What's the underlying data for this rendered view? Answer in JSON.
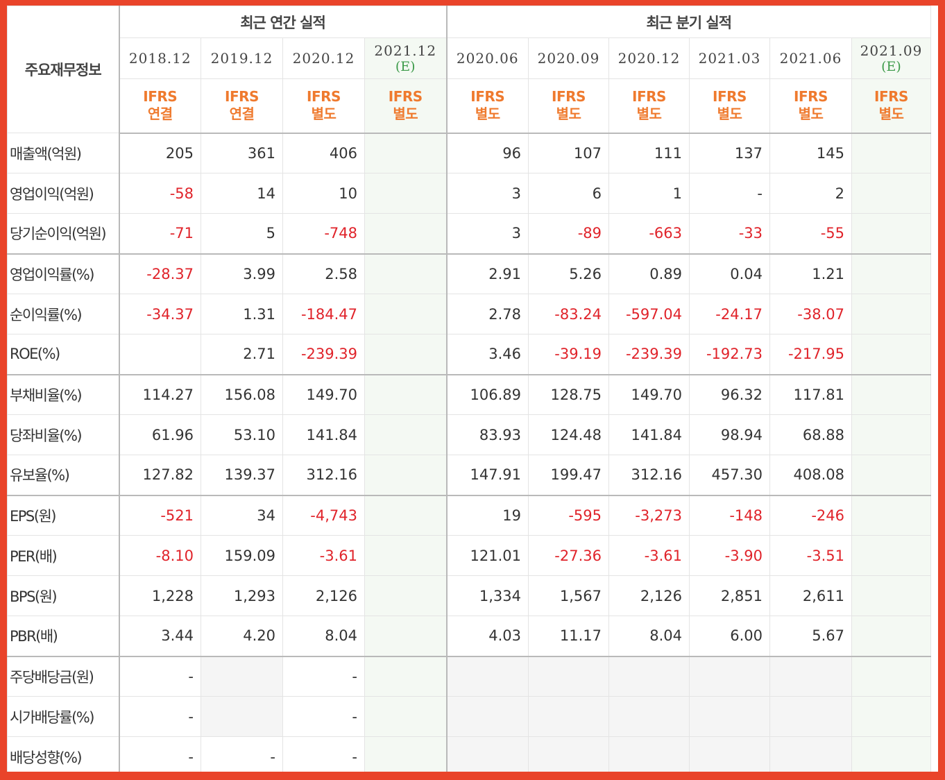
{
  "header": {
    "label_title": "주요재무정보",
    "annual_group": "최근 연간 실적",
    "quarter_group": "최근 분기 실적"
  },
  "periods": [
    {
      "date": "2018.12",
      "est": "",
      "ifrs1": "IFRS",
      "ifrs2": "연결"
    },
    {
      "date": "2019.12",
      "est": "",
      "ifrs1": "IFRS",
      "ifrs2": "연결"
    },
    {
      "date": "2020.12",
      "est": "",
      "ifrs1": "IFRS",
      "ifrs2": "별도"
    },
    {
      "date": "2021.12",
      "est": "(E)",
      "ifrs1": "IFRS",
      "ifrs2": "별도"
    },
    {
      "date": "2020.06",
      "est": "",
      "ifrs1": "IFRS",
      "ifrs2": "별도"
    },
    {
      "date": "2020.09",
      "est": "",
      "ifrs1": "IFRS",
      "ifrs2": "별도"
    },
    {
      "date": "2020.12",
      "est": "",
      "ifrs1": "IFRS",
      "ifrs2": "별도"
    },
    {
      "date": "2021.03",
      "est": "",
      "ifrs1": "IFRS",
      "ifrs2": "별도"
    },
    {
      "date": "2021.06",
      "est": "",
      "ifrs1": "IFRS",
      "ifrs2": "별도"
    },
    {
      "date": "2021.09",
      "est": "(E)",
      "ifrs1": "IFRS",
      "ifrs2": "별도"
    }
  ],
  "rows": [
    {
      "label": "매출액(억원)",
      "values": [
        "205",
        "361",
        "406",
        "",
        "96",
        "107",
        "111",
        "137",
        "145",
        ""
      ]
    },
    {
      "label": "영업이익(억원)",
      "values": [
        "-58",
        "14",
        "10",
        "",
        "3",
        "6",
        "1",
        "-",
        "2",
        ""
      ]
    },
    {
      "label": "당기순이익(억원)",
      "values": [
        "-71",
        "5",
        "-748",
        "",
        "3",
        "-89",
        "-663",
        "-33",
        "-55",
        ""
      ]
    },
    {
      "label": "영업이익률(%)",
      "values": [
        "-28.37",
        "3.99",
        "2.58",
        "",
        "2.91",
        "5.26",
        "0.89",
        "0.04",
        "1.21",
        ""
      ]
    },
    {
      "label": "순이익률(%)",
      "values": [
        "-34.37",
        "1.31",
        "-184.47",
        "",
        "2.78",
        "-83.24",
        "-597.04",
        "-24.17",
        "-38.07",
        ""
      ]
    },
    {
      "label": "ROE(%)",
      "values": [
        "",
        "2.71",
        "-239.39",
        "",
        "3.46",
        "-39.19",
        "-239.39",
        "-192.73",
        "-217.95",
        ""
      ]
    },
    {
      "label": "부채비율(%)",
      "values": [
        "114.27",
        "156.08",
        "149.70",
        "",
        "106.89",
        "128.75",
        "149.70",
        "96.32",
        "117.81",
        ""
      ]
    },
    {
      "label": "당좌비율(%)",
      "values": [
        "61.96",
        "53.10",
        "141.84",
        "",
        "83.93",
        "124.48",
        "141.84",
        "98.94",
        "68.88",
        ""
      ]
    },
    {
      "label": "유보율(%)",
      "values": [
        "127.82",
        "139.37",
        "312.16",
        "",
        "147.91",
        "199.47",
        "312.16",
        "457.30",
        "408.08",
        ""
      ]
    },
    {
      "label": "EPS(원)",
      "values": [
        "-521",
        "34",
        "-4,743",
        "",
        "19",
        "-595",
        "-3,273",
        "-148",
        "-246",
        ""
      ]
    },
    {
      "label": "PER(배)",
      "values": [
        "-8.10",
        "159.09",
        "-3.61",
        "",
        "121.01",
        "-27.36",
        "-3.61",
        "-3.90",
        "-3.51",
        ""
      ]
    },
    {
      "label": "BPS(원)",
      "values": [
        "1,228",
        "1,293",
        "2,126",
        "",
        "1,334",
        "1,567",
        "2,126",
        "2,851",
        "2,611",
        ""
      ]
    },
    {
      "label": "PBR(배)",
      "values": [
        "3.44",
        "4.20",
        "8.04",
        "",
        "4.03",
        "11.17",
        "8.04",
        "6.00",
        "5.67",
        ""
      ]
    },
    {
      "label": "주당배당금(원)",
      "values": [
        "-",
        "",
        "-",
        "",
        "",
        "",
        "",
        "",
        "",
        ""
      ]
    },
    {
      "label": "시가배당률(%)",
      "values": [
        "-",
        "",
        "-",
        "",
        "",
        "",
        "",
        "",
        "",
        ""
      ]
    },
    {
      "label": "배당성향(%)",
      "values": [
        "-",
        "-",
        "-",
        "",
        "",
        "",
        "",
        "",
        "",
        ""
      ]
    }
  ],
  "colors": {
    "frame": "#e9442a",
    "negative": "#e0232a",
    "ifrs": "#ef7a2e",
    "estimate": "#3d9b4a",
    "estimate_bg": "#f4f9f3",
    "empty_bg": "#f5f5f5"
  }
}
